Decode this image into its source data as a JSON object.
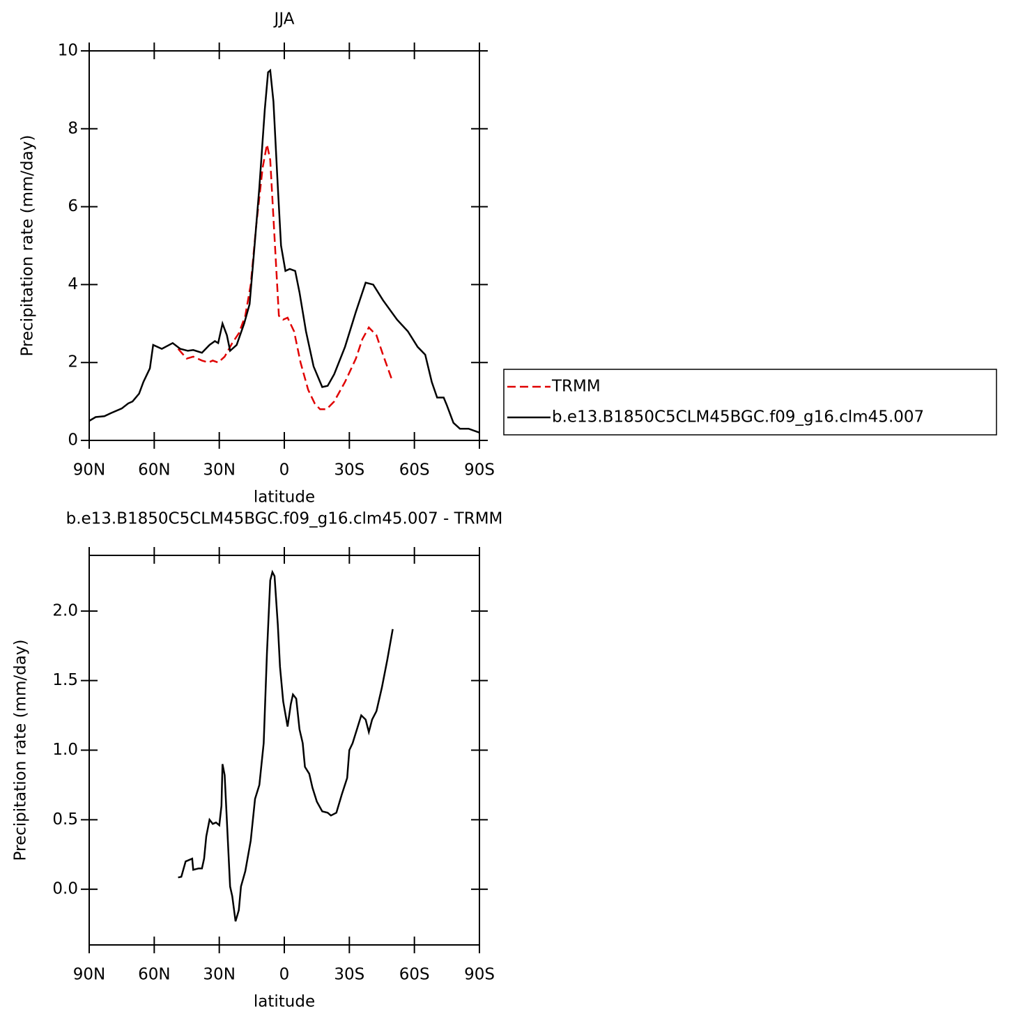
{
  "chart_data": [
    {
      "type": "line",
      "title": "JJA",
      "xlabel": "latitude",
      "ylabel": "Precipitation rate (mm/day)",
      "xlim": [
        90,
        -90
      ],
      "xticks": [
        {
          "value": 90,
          "label": "90N"
        },
        {
          "value": 60,
          "label": "60N"
        },
        {
          "value": 30,
          "label": "30N"
        },
        0,
        {
          "value": -30,
          "label": "30S"
        },
        {
          "value": -60,
          "label": "60S"
        },
        {
          "value": -90,
          "label": "90S"
        }
      ],
      "ylim": [
        0,
        10
      ],
      "yticks": [
        0,
        2,
        4,
        6,
        8,
        10
      ],
      "legend": "right",
      "series": [
        {
          "name": "TRMM",
          "color": "#e00000",
          "linestyle": "dashed",
          "x": [
            49,
            45,
            42,
            38,
            35,
            33,
            30.5,
            27.5,
            24,
            21,
            18,
            15.5,
            13,
            10,
            8,
            6.5,
            4.5,
            2.5,
            0.5,
            -1.5,
            -4.5,
            -7.5,
            -11,
            -14,
            -16.5,
            -19.5,
            -23,
            -28,
            -33,
            -36,
            -39,
            -42.5,
            -45.5,
            -50
          ],
          "values": [
            2.35,
            2.1,
            2.15,
            2.05,
            2.0,
            2.05,
            2.0,
            2.15,
            2.5,
            2.75,
            3.2,
            4.0,
            5.5,
            7.0,
            7.6,
            7.2,
            5.2,
            3.2,
            3.1,
            3.15,
            2.8,
            2.0,
            1.3,
            0.95,
            0.8,
            0.8,
            1.0,
            1.5,
            2.1,
            2.6,
            2.9,
            2.7,
            2.2,
            1.5
          ]
        },
        {
          "name": "b.e13.B1850C5CLM45BGC.f09_g16.clm45.007",
          "color": "#000000",
          "linestyle": "solid",
          "x": [
            90,
            87,
            83,
            80,
            75,
            72,
            70,
            67,
            65,
            62,
            60.5,
            56.5,
            51.5,
            48,
            44.5,
            42,
            38,
            34.5,
            32,
            30.5,
            28.5,
            26.5,
            25,
            22,
            18.5,
            16,
            14,
            11.5,
            9,
            7.5,
            6.5,
            5,
            3,
            1.5,
            -0.5,
            -2.5,
            -5,
            -7,
            -10,
            -13.5,
            -17.5,
            -20,
            -23,
            -28,
            -33,
            -37.5,
            -41,
            -45.5,
            -52,
            -57,
            -61.5,
            -65,
            -68,
            -70.5,
            -73.5,
            -75,
            -78,
            -81,
            -85,
            -90
          ],
          "values": [
            0.5,
            0.6,
            0.62,
            0.7,
            0.82,
            0.95,
            1.0,
            1.2,
            1.5,
            1.85,
            2.45,
            2.35,
            2.5,
            2.35,
            2.3,
            2.32,
            2.25,
            2.45,
            2.55,
            2.5,
            3.0,
            2.7,
            2.3,
            2.45,
            3.0,
            3.5,
            4.8,
            6.5,
            8.5,
            9.45,
            9.5,
            8.7,
            6.5,
            5.0,
            4.35,
            4.4,
            4.35,
            3.8,
            2.8,
            1.9,
            1.37,
            1.4,
            1.7,
            2.4,
            3.3,
            4.05,
            4.0,
            3.6,
            3.1,
            2.8,
            2.4,
            2.2,
            1.5,
            1.1,
            1.1,
            0.9,
            0.45,
            0.3,
            0.3,
            0.2
          ]
        }
      ]
    },
    {
      "type": "line",
      "title": "b.e13.B1850C5CLM45BGC.f09_g16.clm45.007 - TRMM",
      "xlabel": "latitude",
      "ylabel": "Precipitation rate (mm/day)",
      "xlim": [
        90,
        -90
      ],
      "xticks": [
        {
          "value": 90,
          "label": "90N"
        },
        {
          "value": 60,
          "label": "60N"
        },
        {
          "value": 30,
          "label": "30N"
        },
        0,
        {
          "value": -30,
          "label": "30S"
        },
        {
          "value": -60,
          "label": "60S"
        },
        {
          "value": -90,
          "label": "90S"
        }
      ],
      "ylim": [
        -0.4,
        2.4
      ],
      "yticks": [
        {
          "value": 0,
          "label": "0.0"
        },
        0.5,
        {
          "value": 1,
          "label": "1.0"
        },
        1.5,
        {
          "value": 2,
          "label": "2.0"
        }
      ],
      "series": [
        {
          "color": "#000000",
          "linestyle": "solid",
          "x": [
            49,
            47.5,
            45.5,
            42.5,
            42,
            39.5,
            38,
            37,
            36,
            34.5,
            33,
            31.5,
            30,
            29,
            28.5,
            27.5,
            25,
            24,
            22.5,
            21,
            20,
            18,
            15.5,
            13.5,
            11.5,
            9.5,
            8,
            6.5,
            5.5,
            4.5,
            3,
            2,
            0.5,
            -1.5,
            -3,
            -4,
            -5.5,
            -7,
            -8.5,
            -9.5,
            -11.5,
            -13,
            -15,
            -17.5,
            -20,
            -21.5,
            -24,
            -26.5,
            -29,
            -30,
            -31.5,
            -33.5,
            -35.5,
            -37.5,
            -39,
            -40.5,
            -42.5,
            -45,
            -47.5,
            -50
          ],
          "values": [
            0.085,
            0.09,
            0.2,
            0.22,
            0.14,
            0.15,
            0.15,
            0.22,
            0.38,
            0.5,
            0.47,
            0.48,
            0.46,
            0.6,
            0.9,
            0.82,
            0.02,
            -0.05,
            -0.23,
            -0.15,
            0.02,
            0.13,
            0.35,
            0.65,
            0.75,
            1.05,
            1.7,
            2.22,
            2.28,
            2.25,
            1.9,
            1.6,
            1.35,
            1.17,
            1.33,
            1.4,
            1.37,
            1.15,
            1.05,
            0.88,
            0.83,
            0.73,
            0.63,
            0.56,
            0.55,
            0.53,
            0.55,
            0.68,
            0.8,
            1.0,
            1.05,
            1.15,
            1.25,
            1.22,
            1.13,
            1.22,
            1.28,
            1.45,
            1.65,
            1.87
          ]
        }
      ]
    }
  ]
}
